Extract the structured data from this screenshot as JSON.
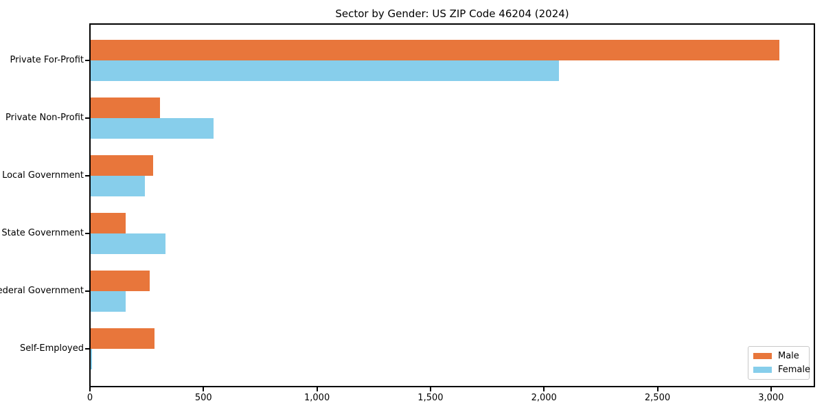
{
  "title": "Sector by Gender: US ZIP Code 46204 (2024)",
  "colors": {
    "male": "#e8763b",
    "female": "#87ceeb",
    "axis": "#000000",
    "legend_border": "#c8c8c8",
    "background": "#ffffff"
  },
  "chart_data": {
    "type": "bar",
    "orientation": "horizontal",
    "title": "Sector by Gender: US ZIP Code 46204 (2024)",
    "xlabel": "",
    "ylabel": "",
    "grid": false,
    "categories": [
      "Private For-Profit",
      "Private Non-Profit",
      "Local Government",
      "State Government",
      "Federal Government",
      "Self-Employed"
    ],
    "series": [
      {
        "name": "Male",
        "color": "#e8763b",
        "values": [
          3033,
          305,
          275,
          154,
          260,
          281
        ]
      },
      {
        "name": "Female",
        "color": "#87ceeb",
        "values": [
          2062,
          540,
          238,
          329,
          154,
          6
        ]
      }
    ],
    "xlim": [
      0,
      3185
    ],
    "xticks": [
      0,
      500,
      1000,
      1500,
      2000,
      2500,
      3000
    ],
    "xtick_labels": [
      "0",
      "500",
      "1,000",
      "1,500",
      "2,000",
      "2,500",
      "3,000"
    ],
    "legend": {
      "position": "lower right",
      "entries": [
        "Male",
        "Female"
      ]
    }
  }
}
